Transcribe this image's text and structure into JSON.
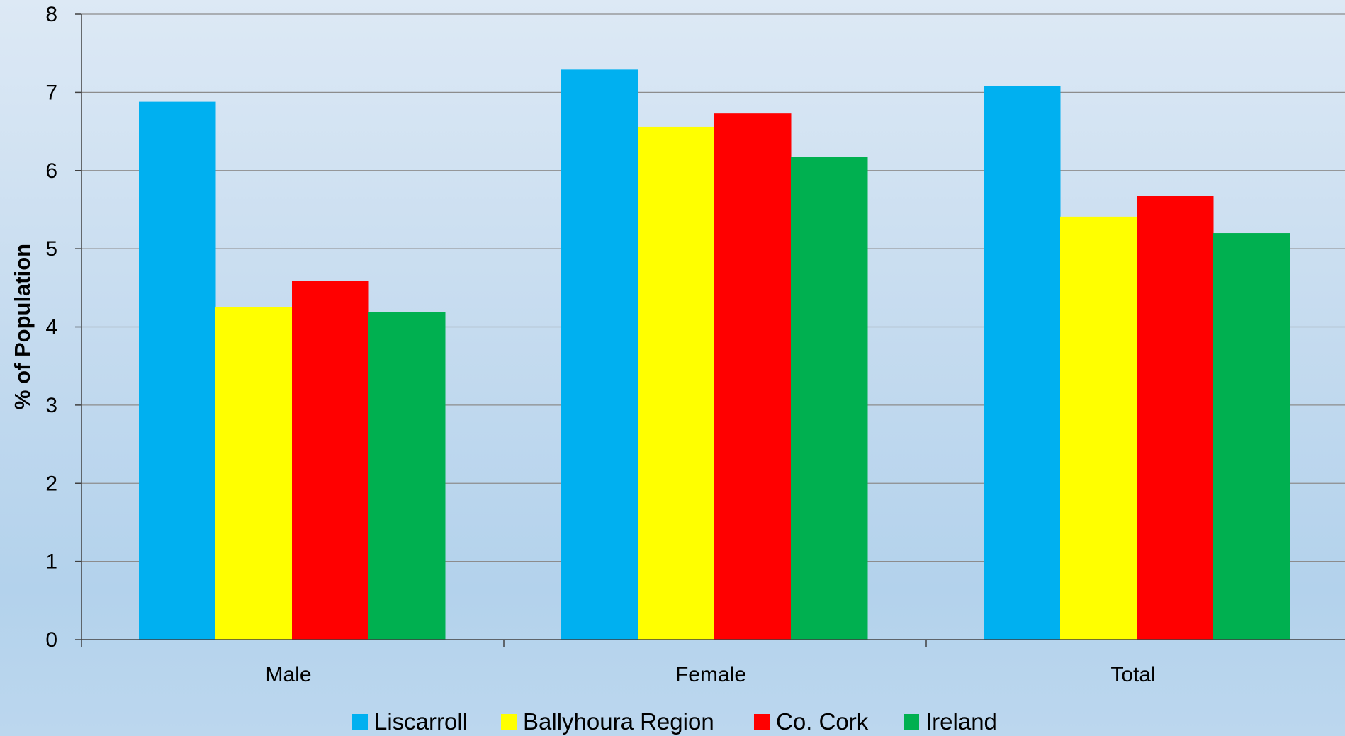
{
  "chart_data": {
    "type": "bar",
    "title": "",
    "xlabel": "",
    "ylabel": "% of Population",
    "ylim": [
      0,
      8
    ],
    "yticks": [
      "0",
      "1",
      "2",
      "3",
      "4",
      "5",
      "6",
      "7",
      "8"
    ],
    "grid": true,
    "legend_position": "bottom",
    "categories": [
      "Male",
      "Female",
      "Total"
    ],
    "series": [
      {
        "name": "Liscarroll",
        "color": "#00b0f0",
        "values": [
          6.88,
          7.29,
          7.08
        ]
      },
      {
        "name": "Ballyhoura Region",
        "color": "#ffff00",
        "values": [
          4.25,
          6.56,
          5.41
        ]
      },
      {
        "name": "Co. Cork",
        "color": "#ff0000",
        "values": [
          4.59,
          6.73,
          5.68
        ]
      },
      {
        "name": "Ireland",
        "color": "#00b050",
        "values": [
          4.19,
          6.17,
          5.2
        ]
      }
    ]
  }
}
